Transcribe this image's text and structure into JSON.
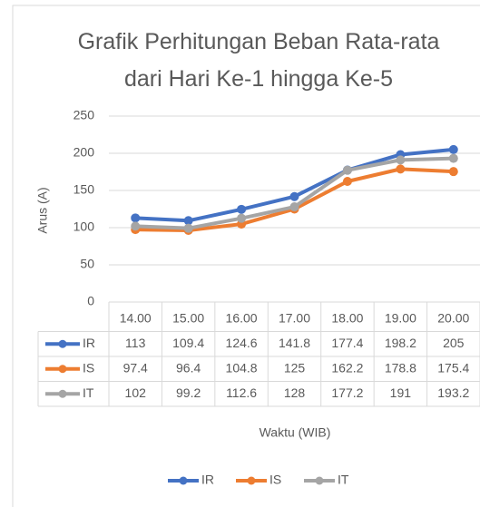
{
  "chart_data": {
    "type": "line",
    "title": "Grafik Perhitungan Beban Rata-rata dari Hari Ke-1 hingga Ke-5",
    "x_label": "Waktu (WIB)",
    "y_label": "Arus (A)",
    "categories": [
      "14.00",
      "15.00",
      "16.00",
      "17.00",
      "18.00",
      "19.00",
      "20.00"
    ],
    "series": [
      {
        "name": "IR",
        "color": "#4472c4",
        "values": [
          113,
          109.4,
          124.6,
          141.8,
          177.4,
          198.2,
          205
        ]
      },
      {
        "name": "IS",
        "color": "#ed7d31",
        "values": [
          97.4,
          96.4,
          104.8,
          125,
          162.2,
          178.8,
          175.4
        ]
      },
      {
        "name": "IT",
        "color": "#a5a5a5",
        "values": [
          102,
          99.2,
          112.6,
          128,
          177.2,
          191,
          193.2
        ]
      }
    ],
    "ylim": [
      0,
      250
    ],
    "yticks": [
      0,
      50,
      100,
      150,
      200,
      250
    ],
    "grid": true,
    "legend": "bottom"
  }
}
